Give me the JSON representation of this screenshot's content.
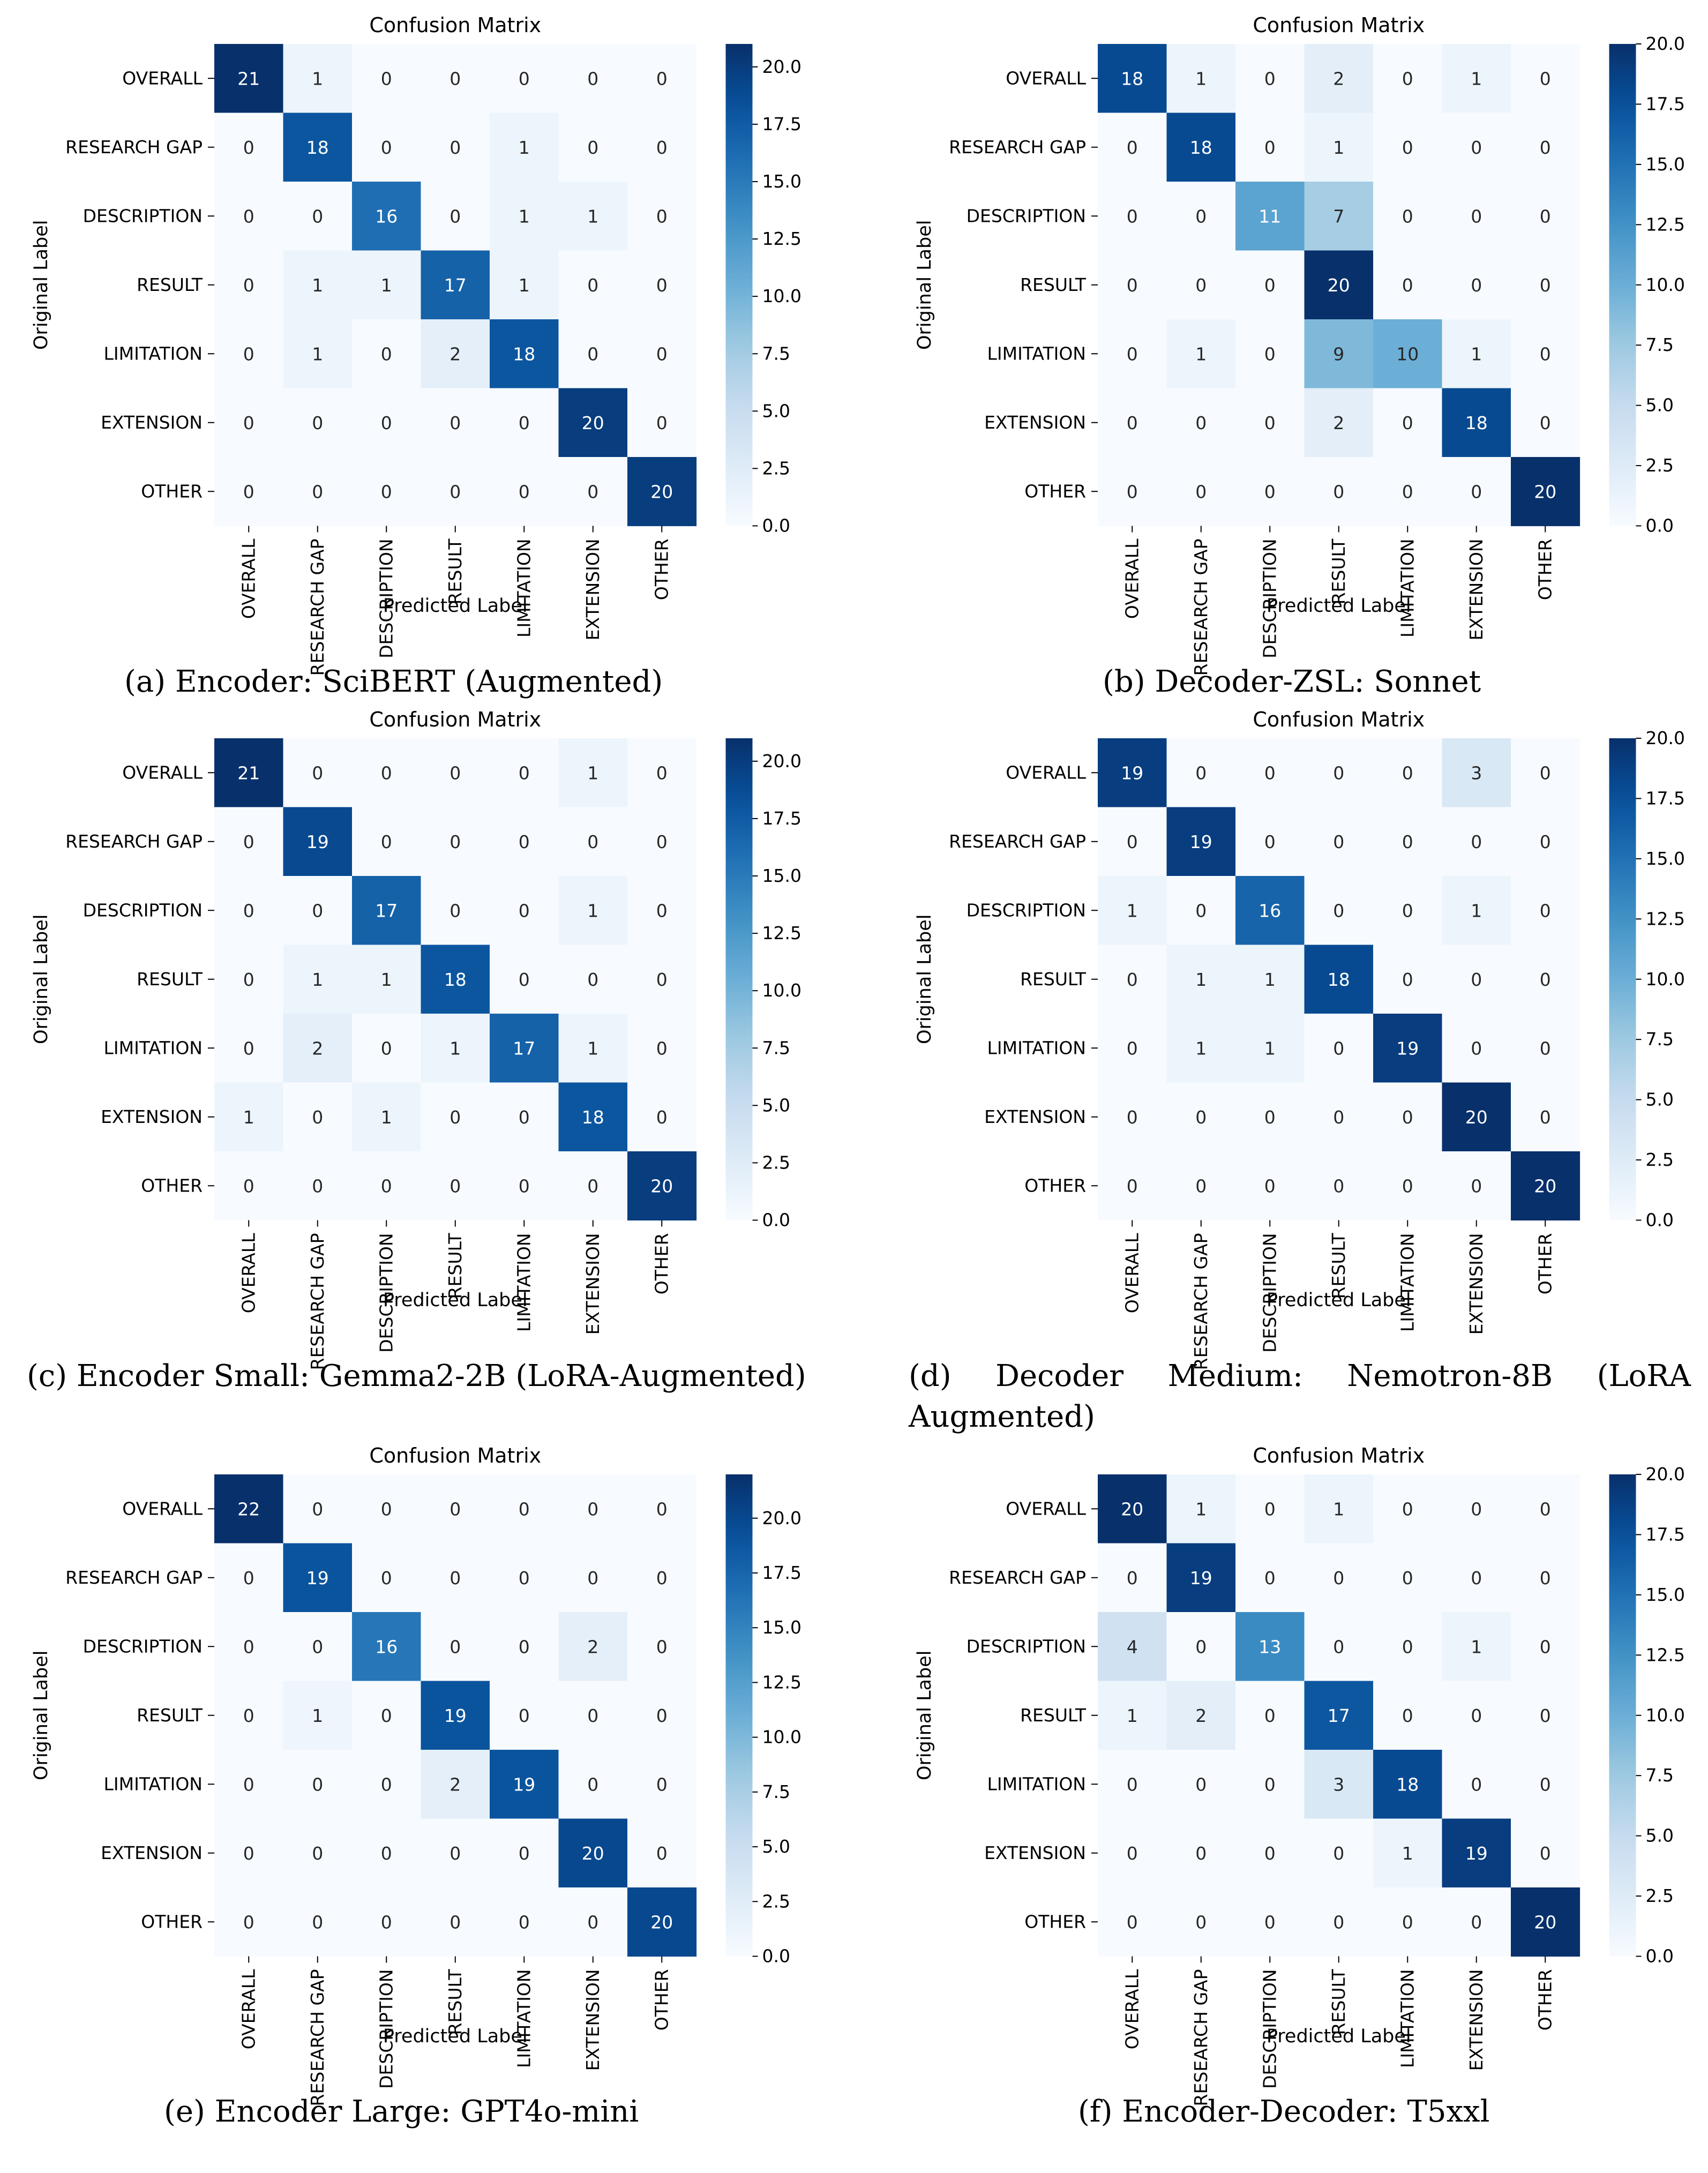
{
  "labels": [
    "OVERALL",
    "RESEARCH GAP",
    "DESCRIPTION",
    "RESULT",
    "LIMITATION",
    "EXTENSION",
    "OTHER"
  ],
  "colors": {
    "cmap_low": "#f7fbff",
    "cmap_high": "#08306b",
    "text_dark": "#262626",
    "text_light": "#ffffff"
  },
  "chart_data": [
    {
      "type": "heatmap",
      "title": "Confusion Matrix",
      "xlabel": "Predicted Label",
      "ylabel": "Original Label",
      "caption": "(a) Encoder: SciBERT (Augmented)",
      "vmax": 21,
      "colorbar_ticks": [
        "0.0",
        "2.5",
        "5.0",
        "7.5",
        "10.0",
        "12.5",
        "15.0",
        "17.5",
        "20.0"
      ],
      "matrix": [
        [
          21,
          1,
          0,
          0,
          0,
          0,
          0
        ],
        [
          0,
          18,
          0,
          0,
          1,
          0,
          0
        ],
        [
          0,
          0,
          16,
          0,
          1,
          1,
          0
        ],
        [
          0,
          1,
          1,
          17,
          1,
          0,
          0
        ],
        [
          0,
          1,
          0,
          2,
          18,
          0,
          0
        ],
        [
          0,
          0,
          0,
          0,
          0,
          20,
          0
        ],
        [
          0,
          0,
          0,
          0,
          0,
          0,
          20
        ]
      ]
    },
    {
      "type": "heatmap",
      "title": "Confusion Matrix",
      "xlabel": "Predicted Label",
      "ylabel": "Original Label",
      "caption": "(b) Decoder-ZSL: Sonnet",
      "vmax": 20,
      "colorbar_ticks": [
        "0.0",
        "2.5",
        "5.0",
        "7.5",
        "10.0",
        "12.5",
        "15.0",
        "17.5",
        "20.0"
      ],
      "matrix": [
        [
          18,
          1,
          0,
          2,
          0,
          1,
          0
        ],
        [
          0,
          18,
          0,
          1,
          0,
          0,
          0
        ],
        [
          0,
          0,
          11,
          7,
          0,
          0,
          0
        ],
        [
          0,
          0,
          0,
          20,
          0,
          0,
          0
        ],
        [
          0,
          1,
          0,
          9,
          10,
          1,
          0
        ],
        [
          0,
          0,
          0,
          2,
          0,
          18,
          0
        ],
        [
          0,
          0,
          0,
          0,
          0,
          0,
          20
        ]
      ]
    },
    {
      "type": "heatmap",
      "title": "Confusion Matrix",
      "xlabel": "Predicted Label",
      "ylabel": "Original Label",
      "caption": "(c) Encoder Small: Gemma2-2B (LoRA-Augmented)",
      "vmax": 21,
      "colorbar_ticks": [
        "0.0",
        "2.5",
        "5.0",
        "7.5",
        "10.0",
        "12.5",
        "15.0",
        "17.5",
        "20.0"
      ],
      "matrix": [
        [
          21,
          0,
          0,
          0,
          0,
          1,
          0
        ],
        [
          0,
          19,
          0,
          0,
          0,
          0,
          0
        ],
        [
          0,
          0,
          17,
          0,
          0,
          1,
          0
        ],
        [
          0,
          1,
          1,
          18,
          0,
          0,
          0
        ],
        [
          0,
          2,
          0,
          1,
          17,
          1,
          0
        ],
        [
          1,
          0,
          1,
          0,
          0,
          18,
          0
        ],
        [
          0,
          0,
          0,
          0,
          0,
          0,
          20
        ]
      ]
    },
    {
      "type": "heatmap",
      "title": "Confusion Matrix",
      "xlabel": "Predicted Label",
      "ylabel": "Original Label",
      "caption": "(d) Decoder Medium: Nemotron-8B (LoRA Augmented)",
      "vmax": 20,
      "colorbar_ticks": [
        "0.0",
        "2.5",
        "5.0",
        "7.5",
        "10.0",
        "12.5",
        "15.0",
        "17.5",
        "20.0"
      ],
      "matrix": [
        [
          19,
          0,
          0,
          0,
          0,
          3,
          0
        ],
        [
          0,
          19,
          0,
          0,
          0,
          0,
          0
        ],
        [
          1,
          0,
          16,
          0,
          0,
          1,
          0
        ],
        [
          0,
          1,
          1,
          18,
          0,
          0,
          0
        ],
        [
          0,
          1,
          1,
          0,
          19,
          0,
          0
        ],
        [
          0,
          0,
          0,
          0,
          0,
          20,
          0
        ],
        [
          0,
          0,
          0,
          0,
          0,
          0,
          20
        ]
      ]
    },
    {
      "type": "heatmap",
      "title": "Confusion Matrix",
      "xlabel": "Predicted Label",
      "ylabel": "Original Label",
      "caption": "(e) Encoder Large: GPT4o-mini",
      "vmax": 22,
      "colorbar_ticks": [
        "0.0",
        "2.5",
        "5.0",
        "7.5",
        "10.0",
        "12.5",
        "15.0",
        "17.5",
        "20.0"
      ],
      "matrix": [
        [
          22,
          0,
          0,
          0,
          0,
          0,
          0
        ],
        [
          0,
          19,
          0,
          0,
          0,
          0,
          0
        ],
        [
          0,
          0,
          16,
          0,
          0,
          2,
          0
        ],
        [
          0,
          1,
          0,
          19,
          0,
          0,
          0
        ],
        [
          0,
          0,
          0,
          2,
          19,
          0,
          0
        ],
        [
          0,
          0,
          0,
          0,
          0,
          20,
          0
        ],
        [
          0,
          0,
          0,
          0,
          0,
          0,
          20
        ]
      ]
    },
    {
      "type": "heatmap",
      "title": "Confusion Matrix",
      "xlabel": "Predicted Label",
      "ylabel": "Original Label",
      "caption": "(f) Encoder-Decoder: T5xxl",
      "vmax": 20,
      "colorbar_ticks": [
        "0.0",
        "2.5",
        "5.0",
        "7.5",
        "10.0",
        "12.5",
        "15.0",
        "17.5",
        "20.0"
      ],
      "matrix": [
        [
          20,
          1,
          0,
          1,
          0,
          0,
          0
        ],
        [
          0,
          19,
          0,
          0,
          0,
          0,
          0
        ],
        [
          4,
          0,
          13,
          0,
          0,
          1,
          0
        ],
        [
          1,
          2,
          0,
          17,
          0,
          0,
          0
        ],
        [
          0,
          0,
          0,
          3,
          18,
          0,
          0
        ],
        [
          0,
          0,
          0,
          0,
          1,
          19,
          0
        ],
        [
          0,
          0,
          0,
          0,
          0,
          0,
          20
        ]
      ]
    }
  ]
}
